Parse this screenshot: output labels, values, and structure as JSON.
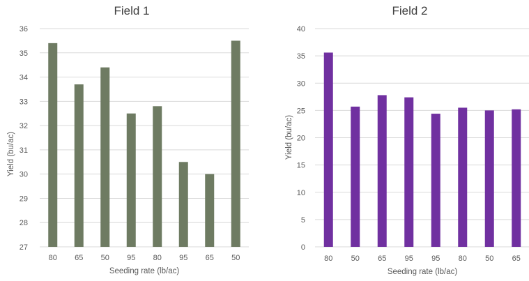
{
  "chart_data": [
    {
      "type": "bar",
      "title": "Field 1",
      "xlabel": "Seeding rate (lb/ac)",
      "ylabel": "Yield (bu/ac)",
      "categories": [
        "80",
        "65",
        "50",
        "95",
        "80",
        "95",
        "65",
        "50"
      ],
      "values": [
        35.4,
        33.7,
        34.4,
        32.5,
        32.8,
        30.5,
        30.0,
        35.5
      ],
      "ylim": [
        27,
        36
      ],
      "yticks": [
        27,
        28,
        29,
        30,
        31,
        32,
        33,
        34,
        35,
        36
      ],
      "grid": true,
      "legend": "none",
      "color": "#6e7b62"
    },
    {
      "type": "bar",
      "title": "Field 2",
      "xlabel": "Seeding rate (lb/ac)",
      "ylabel": "Yield (bu/ac)",
      "categories": [
        "80",
        "50",
        "65",
        "95",
        "95",
        "80",
        "50",
        "65"
      ],
      "values": [
        35.6,
        25.7,
        27.8,
        27.4,
        24.4,
        25.5,
        25.0,
        25.2
      ],
      "ylim": [
        0,
        40
      ],
      "yticks": [
        0,
        5,
        10,
        15,
        20,
        25,
        30,
        35,
        40
      ],
      "grid": true,
      "legend": "none",
      "color": "#7030a0"
    }
  ]
}
